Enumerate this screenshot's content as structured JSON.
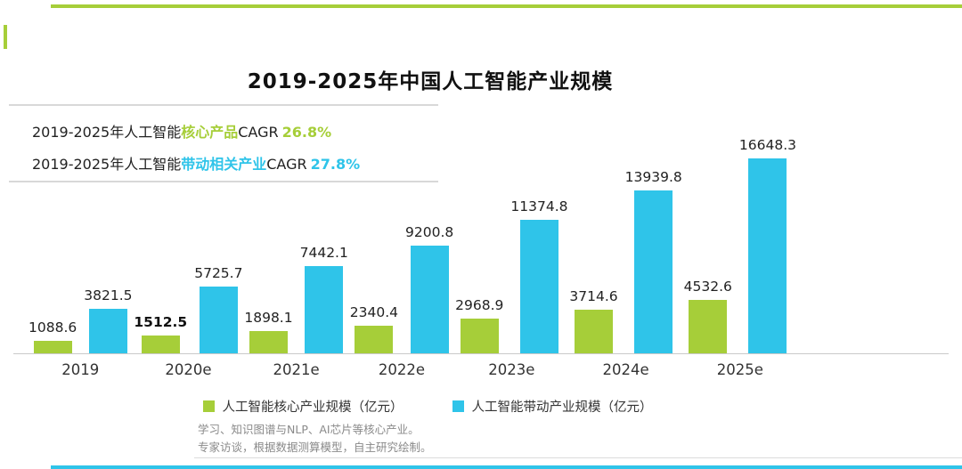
{
  "title": "2019-2025年中国人工智能产业规模",
  "cagr_block": {
    "line1": {
      "prefix": "2019-2025年人工智能",
      "highlight": "核心产品",
      "label": "CAGR",
      "value": "26.8%"
    },
    "line2": {
      "prefix": "2019-2025年人工智能",
      "highlight": "带动相关产业",
      "label": "CAGR",
      "value": "27.8%"
    }
  },
  "colors": {
    "green": "#a6ce39",
    "cyan": "#2fc4e9"
  },
  "chart_data": {
    "type": "bar",
    "categories": [
      "2019",
      "2020e",
      "2021e",
      "2022e",
      "2023e",
      "2024e",
      "2025e"
    ],
    "series": [
      {
        "name": "人工智能核心产业规模（亿元）",
        "color": "#a6ce39",
        "values": [
          1088.6,
          1512.5,
          1898.1,
          2340.4,
          2968.9,
          3714.6,
          4532.6
        ]
      },
      {
        "name": "人工智能带动产业规模（亿元）",
        "color": "#2fc4e9",
        "values": [
          3821.5,
          5725.7,
          7442.1,
          9200.8,
          11374.8,
          13939.8,
          16648.3
        ]
      }
    ],
    "highlight_label": "1512.5",
    "ylim": [
      0,
      17000
    ],
    "legend_position": "bottom",
    "grid": false
  },
  "footer": {
    "line1": "学习、知识图谱与NLP、AI芯片等核心产业。",
    "line2": "专家访谈，根据数据测算模型，自主研究绘制。"
  }
}
